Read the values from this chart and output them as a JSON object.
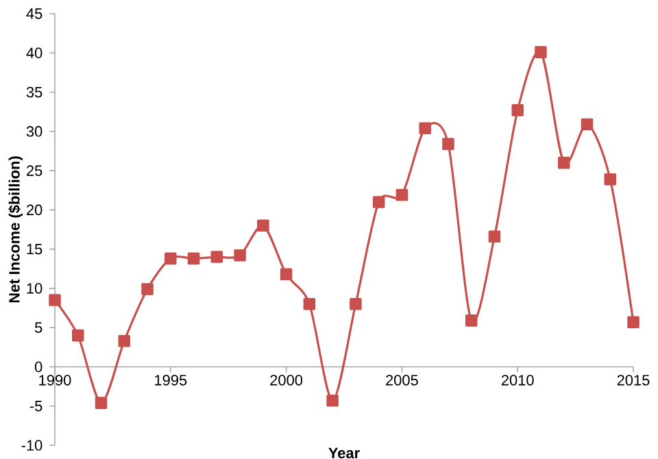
{
  "chart_data": {
    "type": "line",
    "xlabel": "Year",
    "ylabel": "Net Income ($billion)",
    "x": [
      1990,
      1991,
      1992,
      1993,
      1994,
      1995,
      1996,
      1997,
      1998,
      1999,
      2000,
      2001,
      2002,
      2003,
      2004,
      2005,
      2006,
      2007,
      2008,
      2009,
      2010,
      2011,
      2012,
      2013,
      2014,
      2015
    ],
    "series": [
      {
        "color": "#c84f4c",
        "values": [
          8.5,
          4,
          -4.6,
          3.3,
          9.9,
          13.8,
          13.8,
          14,
          14.2,
          18,
          11.8,
          8,
          -4.3,
          8,
          21,
          21.9,
          30.4,
          28.4,
          5.9,
          16.6,
          32.7,
          40.1,
          26,
          30.9,
          23.9,
          5.7
        ]
      }
    ],
    "xlim": [
      1990,
      2015
    ],
    "xticks": [
      1990,
      1995,
      2000,
      2005,
      2010,
      2015
    ],
    "ylim": [
      -10,
      45
    ],
    "yticks": [
      -10,
      -5,
      0,
      5,
      10,
      15,
      20,
      25,
      30,
      35,
      40,
      45
    ],
    "grid": false,
    "legend": false,
    "marker": "square",
    "line_style": "solid"
  }
}
